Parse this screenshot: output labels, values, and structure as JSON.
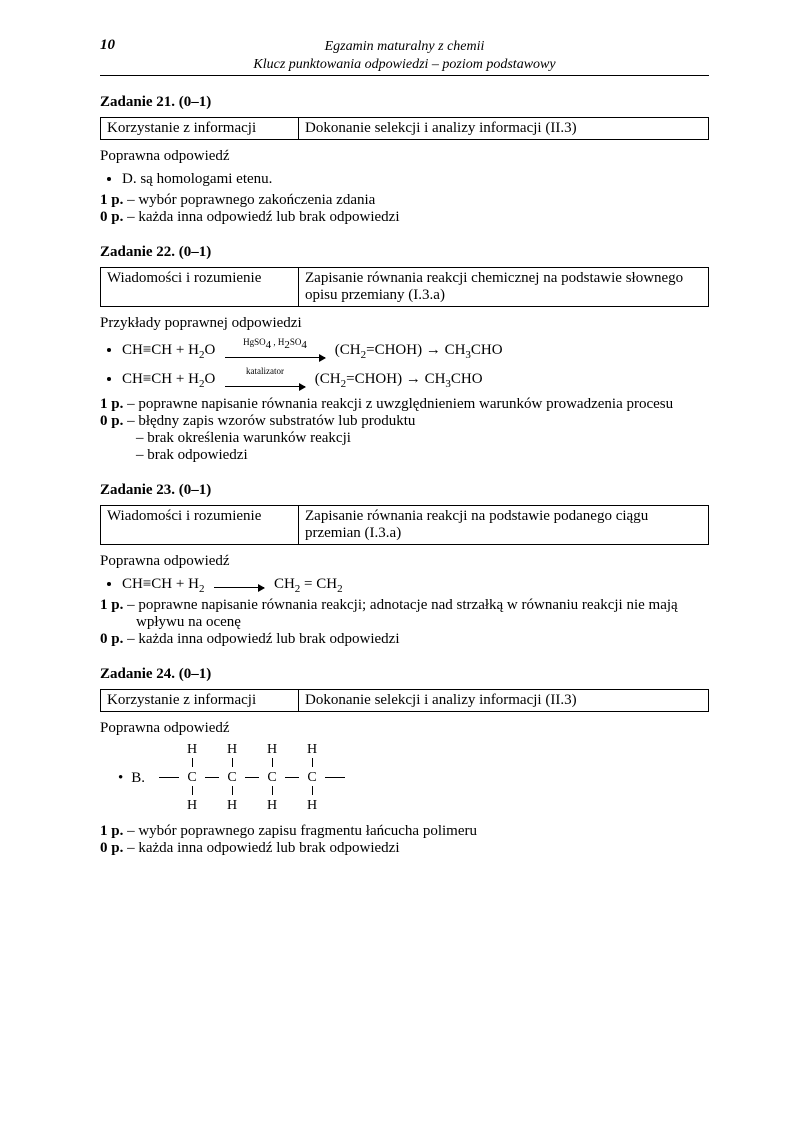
{
  "header": {
    "page_number": "10",
    "title_line1": "Egzamin maturalny z chemii",
    "title_line2": "Klucz punktowania odpowiedzi – poziom podstawowy"
  },
  "labels": {
    "correct_answer": "Poprawna odpowiedź",
    "examples_correct": "Przykłady poprawnej odpowiedzi"
  },
  "tasks": [
    {
      "title": "Zadanie 21. (0–1)",
      "table": {
        "c1": "Korzystanie z informacji",
        "c2": "Dokonanie selekcji i analizy informacji (II.3)"
      },
      "intro_type": "correct",
      "bullets": [
        "D. są homologami etenu."
      ],
      "score": [
        {
          "pts": "1 p.",
          "text": "– wybór poprawnego zakończenia zdania"
        },
        {
          "pts": "0 p.",
          "text": "– każda inna odpowiedź lub brak odpowiedzi"
        }
      ]
    },
    {
      "title": "Zadanie 22. (0–1)",
      "table": {
        "c1": "Wiadomości i rozumienie",
        "c2": "Zapisanie równania reakcji chemicznej na podstawie słownego opisu przemiany (I.3.a)"
      },
      "intro_type": "examples",
      "eqs": [
        {
          "lhs": "CH≡CH + H",
          "lhs_sub": "2",
          "lhs_tail": "O",
          "arrow_class": "arrow-100",
          "cond": "HgSO",
          "cond_sub1": "4",
          "cond_mid": " , H",
          "cond_sub2": "2",
          "cond_tail": "SO",
          "cond_sub3": "4",
          "mid": "(CH",
          "mid_sub": "2",
          "mid_tail": "=CHOH)  →  CH",
          "rhs_sub": "3",
          "rhs_tail": "CHO"
        },
        {
          "lhs": "CH≡CH + H",
          "lhs_sub": "2",
          "lhs_tail": "O",
          "arrow_class": "arrow-80",
          "cond_plain": "katalizator",
          "mid": "(CH",
          "mid_sub": "2",
          "mid_tail": "=CHOH)  →  CH",
          "rhs_sub": "3",
          "rhs_tail": "CHO"
        }
      ],
      "score": [
        {
          "pts": "1 p.",
          "text": "– poprawne napisanie równania reakcji z uwzględnieniem warunków prowadzenia procesu",
          "wrap_indent": true
        },
        {
          "pts": "0 p.",
          "text": "– błędny zapis wzorów substratów lub produktu"
        },
        {
          "pts": "",
          "text": "– brak określenia warunków reakcji",
          "continuation": true
        },
        {
          "pts": "",
          "text": "– brak odpowiedzi",
          "continuation": true
        }
      ]
    },
    {
      "title": "Zadanie 23. (0–1)",
      "table": {
        "c1": "Wiadomości i rozumienie",
        "c2": "Zapisanie równania reakcji na podstawie podanego ciągu przemian (I.3.a)"
      },
      "intro_type": "correct",
      "eq_simple": {
        "lhs": "CH≡CH + H",
        "lhs_sub": "2",
        "arrow_class": "arrow-50",
        "rhs": "CH",
        "rhs_sub1": "2",
        "rhs_mid": " = CH",
        "rhs_sub2": "2"
      },
      "score": [
        {
          "pts": "1 p.",
          "text": "– poprawne napisanie równania reakcji; adnotacje nad strzałką w równaniu reakcji nie mają wpływu na ocenę",
          "wrap_indent": true
        },
        {
          "pts": "0 p.",
          "text": "– każda inna odpowiedź lub brak odpowiedzi"
        }
      ]
    },
    {
      "title": "Zadanie 24. (0–1)",
      "table": {
        "c1": "Korzystanie z informacji",
        "c2": "Dokonanie selekcji i analizy informacji (II.3)"
      },
      "intro_type": "correct",
      "struct_label": "B.",
      "struct_atoms": {
        "H": "H",
        "C": "C"
      },
      "score": [
        {
          "pts": "1 p.",
          "text": "– wybór poprawnego zapisu fragmentu łańcucha polimeru"
        },
        {
          "pts": "0 p.",
          "text": "– każda inna odpowiedź lub brak odpowiedzi"
        }
      ]
    }
  ]
}
